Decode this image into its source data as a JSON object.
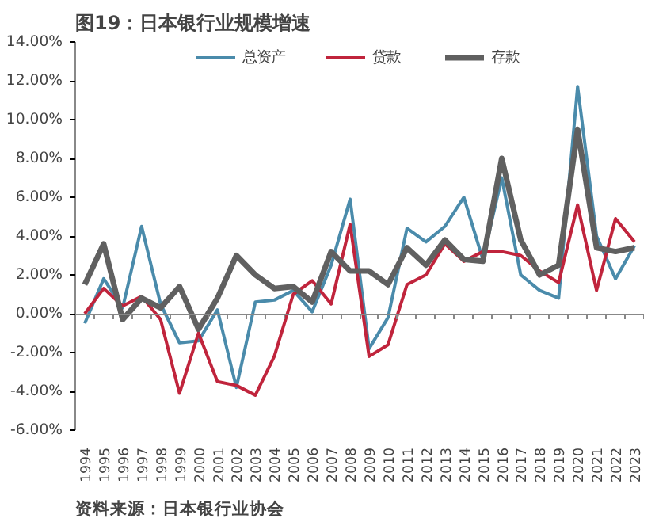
{
  "chart_data": {
    "type": "line",
    "title": "图19：日本银行业规模增速",
    "categories": [
      "1994",
      "1995",
      "1996",
      "1997",
      "1998",
      "1999",
      "2000",
      "2001",
      "2002",
      "2003",
      "2004",
      "2005",
      "2006",
      "2007",
      "2008",
      "2009",
      "2010",
      "2011",
      "2012",
      "2013",
      "2014",
      "2015",
      "2016",
      "2017",
      "2018",
      "2019",
      "2020",
      "2021",
      "2022",
      "2023"
    ],
    "series": [
      {
        "name": "总资产",
        "color": "#4a8bab",
        "values": [
          -0.5,
          1.8,
          0.3,
          4.5,
          0.5,
          -1.5,
          -1.4,
          0.2,
          -3.8,
          0.6,
          0.7,
          1.2,
          0.1,
          2.5,
          5.9,
          -1.8,
          -0.2,
          4.4,
          3.7,
          4.5,
          6.0,
          2.8,
          7.0,
          2.0,
          1.2,
          0.8,
          11.7,
          4.0,
          1.8,
          3.5
        ]
      },
      {
        "name": "贷款",
        "color": "#c0243c",
        "values": [
          0.0,
          1.3,
          0.4,
          0.9,
          -0.3,
          -4.1,
          -1.0,
          -3.5,
          -3.7,
          -4.2,
          -2.2,
          1.0,
          1.7,
          0.5,
          4.6,
          -2.2,
          -1.6,
          1.5,
          2.0,
          3.6,
          2.7,
          3.2,
          3.2,
          3.0,
          2.2,
          1.6,
          5.6,
          1.2,
          4.9,
          3.7
        ]
      },
      {
        "name": "存款",
        "color": "#606060",
        "values": [
          1.5,
          3.6,
          -0.3,
          0.8,
          0.3,
          1.4,
          -0.8,
          0.8,
          3.0,
          2.0,
          1.3,
          1.4,
          0.6,
          3.2,
          2.2,
          2.2,
          1.5,
          3.4,
          2.5,
          3.8,
          2.8,
          2.7,
          8.0,
          3.8,
          2.0,
          2.5,
          9.5,
          3.4,
          3.2,
          3.4
        ]
      }
    ],
    "ylim": [
      -6,
      14
    ],
    "yticks": [
      {
        "value": -6,
        "label": "-6.00%"
      },
      {
        "value": -4,
        "label": "-4.00%"
      },
      {
        "value": -2,
        "label": "-2.00%"
      },
      {
        "value": 0,
        "label": "0.00%"
      },
      {
        "value": 2,
        "label": "2.00%"
      },
      {
        "value": 4,
        "label": "4.00%"
      },
      {
        "value": 6,
        "label": "6.00%"
      },
      {
        "value": 8,
        "label": "8.00%"
      },
      {
        "value": 10,
        "label": "10.00%"
      },
      {
        "value": 12,
        "label": "12.00%"
      },
      {
        "value": 14,
        "label": "14.00%"
      }
    ],
    "ref_lines": [
      {
        "axis": "y",
        "value": 0,
        "color": "#888888"
      }
    ],
    "legend": "top",
    "grid": false,
    "marker": "none",
    "line_style": "solid",
    "annotations": [
      "资料来源：日本银行业协会"
    ]
  }
}
